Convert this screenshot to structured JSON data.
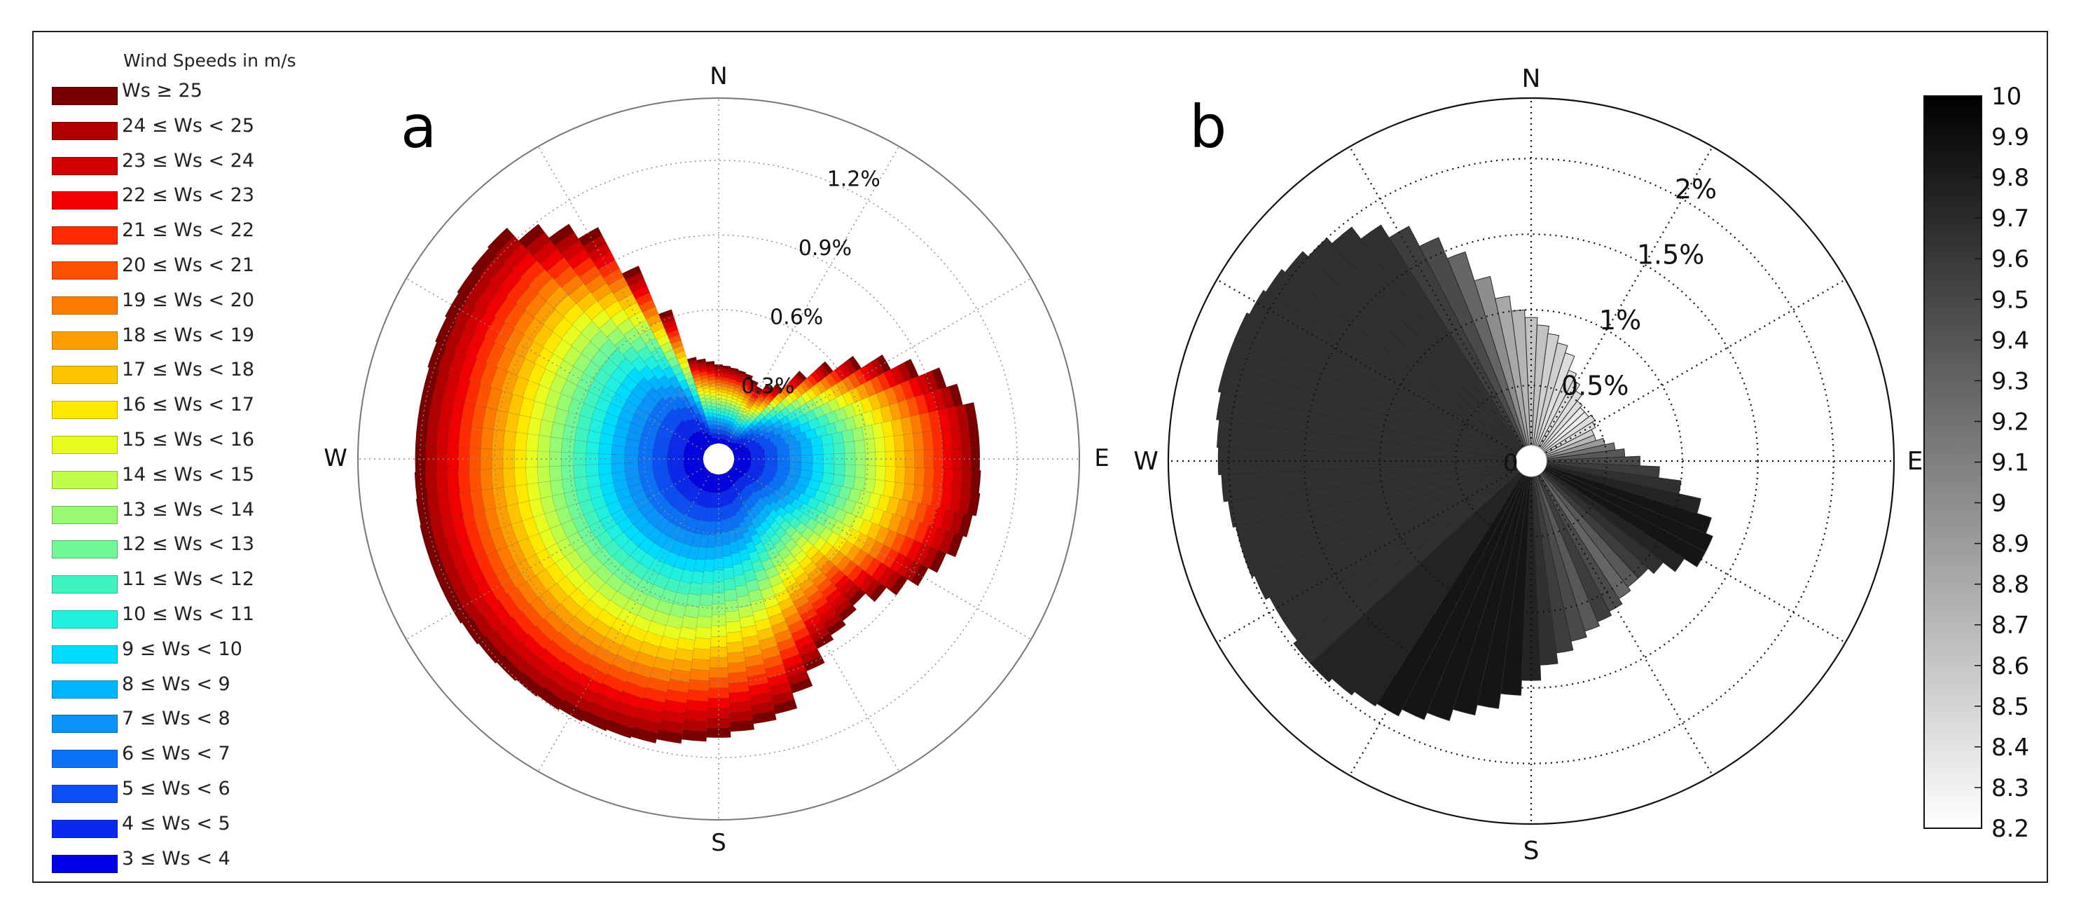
{
  "chart_data": [
    {
      "type": "polar-stacked-bar",
      "panel_label": "a",
      "title": "",
      "legend_title": "Wind Speeds in m/s",
      "directions": [
        "N",
        "E",
        "S",
        "W"
      ],
      "radial_ticks": [
        "0.3%",
        "0.6%",
        "0.9%",
        "1.2%"
      ],
      "radial_tick_values": [
        0.3,
        0.6,
        0.9,
        1.2
      ],
      "rmax": 1.45,
      "sector_count": 72,
      "outer_envelope_by_bearing": {
        "bearing_deg": [
          0,
          20,
          30,
          40,
          50,
          60,
          70,
          80,
          90,
          100,
          110,
          120,
          135,
          150,
          165,
          180,
          195,
          210,
          225,
          240,
          255,
          270,
          285,
          300,
          315,
          330,
          345,
          360
        ],
        "percent": [
          0.38,
          0.36,
          0.33,
          0.38,
          0.58,
          0.78,
          0.96,
          1.05,
          1.05,
          1.06,
          1.03,
          0.95,
          0.8,
          0.86,
          1.05,
          1.12,
          1.17,
          1.19,
          1.21,
          1.23,
          1.23,
          1.22,
          1.22,
          1.24,
          1.26,
          1.05,
          0.42,
          0.38
        ]
      },
      "speed_bins": [
        {
          "label": "3 ≤ Ws < 4",
          "color": "#0000e6"
        },
        {
          "label": "4 ≤ Ws < 5",
          "color": "#0a28ee"
        },
        {
          "label": "5 ≤ Ws < 6",
          "color": "#0a4ef4"
        },
        {
          "label": "6 ≤ Ws < 7",
          "color": "#0a72f8"
        },
        {
          "label": "7 ≤ Ws < 8",
          "color": "#0a94fa"
        },
        {
          "label": "8 ≤ Ws < 9",
          "color": "#00b4ff"
        },
        {
          "label": "9 ≤ Ws < 10",
          "color": "#00dcff"
        },
        {
          "label": "10 ≤ Ws < 11",
          "color": "#20f0e0"
        },
        {
          "label": "11 ≤ Ws < 12",
          "color": "#40f4c0"
        },
        {
          "label": "12 ≤ Ws < 13",
          "color": "#70f898"
        },
        {
          "label": "13 ≤ Ws < 14",
          "color": "#98fa70"
        },
        {
          "label": "14 ≤ Ws < 15",
          "color": "#c0fc48"
        },
        {
          "label": "15 ≤ Ws < 16",
          "color": "#e8fc20"
        },
        {
          "label": "16 ≤ Ws < 17",
          "color": "#ffe800"
        },
        {
          "label": "17 ≤ Ws < 18",
          "color": "#ffc400"
        },
        {
          "label": "18 ≤ Ws < 19",
          "color": "#ff9e00"
        },
        {
          "label": "19 ≤ Ws < 20",
          "color": "#ff7a00"
        },
        {
          "label": "20 ≤ Ws < 21",
          "color": "#ff5200"
        },
        {
          "label": "21 ≤ Ws < 22",
          "color": "#ff2a00"
        },
        {
          "label": "22 ≤ Ws < 23",
          "color": "#f00000"
        },
        {
          "label": "23 ≤ Ws < 24",
          "color": "#d20000"
        },
        {
          "label": "24 ≤ Ws < 25",
          "color": "#b00000"
        },
        {
          "label": "Ws ≥ 25",
          "color": "#7a0000"
        }
      ]
    },
    {
      "type": "polar-bar",
      "panel_label": "b",
      "title": "",
      "directions": [
        "N",
        "E",
        "S",
        "W"
      ],
      "center_label": "0",
      "radial_ticks": [
        "0.5%",
        "1%",
        "1.5%",
        "2%"
      ],
      "radial_tick_values": [
        0.5,
        1.0,
        1.5,
        2.0
      ],
      "rmax": 2.4,
      "sectors": [
        {
          "bearing": 0,
          "percent": 0.95,
          "mean_speed": 8.6
        },
        {
          "bearing": 5,
          "percent": 0.9,
          "mean_speed": 8.6
        },
        {
          "bearing": 10,
          "percent": 0.85,
          "mean_speed": 8.5
        },
        {
          "bearing": 15,
          "percent": 0.8,
          "mean_speed": 8.5
        },
        {
          "bearing": 20,
          "percent": 0.75,
          "mean_speed": 8.4
        },
        {
          "bearing": 25,
          "percent": 0.65,
          "mean_speed": 8.4
        },
        {
          "bearing": 30,
          "percent": 0.6,
          "mean_speed": 8.4
        },
        {
          "bearing": 35,
          "percent": 0.55,
          "mean_speed": 8.4
        },
        {
          "bearing": 40,
          "percent": 0.5,
          "mean_speed": 8.4
        },
        {
          "bearing": 45,
          "percent": 0.48,
          "mean_speed": 8.3
        },
        {
          "bearing": 50,
          "percent": 0.48,
          "mean_speed": 8.3
        },
        {
          "bearing": 55,
          "percent": 0.5,
          "mean_speed": 8.4
        },
        {
          "bearing": 60,
          "percent": 0.48,
          "mean_speed": 8.4
        },
        {
          "bearing": 65,
          "percent": 0.45,
          "mean_speed": 8.5
        },
        {
          "bearing": 70,
          "percent": 0.45,
          "mean_speed": 8.7
        },
        {
          "bearing": 75,
          "percent": 0.5,
          "mean_speed": 8.9
        },
        {
          "bearing": 80,
          "percent": 0.56,
          "mean_speed": 9.2
        },
        {
          "bearing": 85,
          "percent": 0.62,
          "mean_speed": 9.4
        },
        {
          "bearing": 90,
          "percent": 0.72,
          "mean_speed": 9.5
        },
        {
          "bearing": 95,
          "percent": 0.85,
          "mean_speed": 9.6
        },
        {
          "bearing": 100,
          "percent": 1.0,
          "mean_speed": 9.7
        },
        {
          "bearing": 105,
          "percent": 1.15,
          "mean_speed": 9.8
        },
        {
          "bearing": 110,
          "percent": 1.25,
          "mean_speed": 9.9
        },
        {
          "bearing": 115,
          "percent": 1.3,
          "mean_speed": 9.9
        },
        {
          "bearing": 120,
          "percent": 1.3,
          "mean_speed": 9.9
        },
        {
          "bearing": 125,
          "percent": 1.2,
          "mean_speed": 9.8
        },
        {
          "bearing": 130,
          "percent": 1.1,
          "mean_speed": 9.7
        },
        {
          "bearing": 135,
          "percent": 1.05,
          "mean_speed": 9.6
        },
        {
          "bearing": 140,
          "percent": 1.05,
          "mean_speed": 9.4
        },
        {
          "bearing": 145,
          "percent": 1.08,
          "mean_speed": 9.3
        },
        {
          "bearing": 150,
          "percent": 1.12,
          "mean_speed": 9.5
        },
        {
          "bearing": 155,
          "percent": 1.15,
          "mean_speed": 9.6
        },
        {
          "bearing": 160,
          "percent": 1.18,
          "mean_speed": 9.4
        },
        {
          "bearing": 165,
          "percent": 1.22,
          "mean_speed": 9.5
        },
        {
          "bearing": 170,
          "percent": 1.28,
          "mean_speed": 9.6
        },
        {
          "bearing": 175,
          "percent": 1.35,
          "mean_speed": 9.7
        },
        {
          "bearing": 180,
          "percent": 1.45,
          "mean_speed": 9.8
        },
        {
          "bearing": 185,
          "percent": 1.55,
          "mean_speed": 9.9
        },
        {
          "bearing": 190,
          "percent": 1.65,
          "mean_speed": 9.9
        },
        {
          "bearing": 195,
          "percent": 1.72,
          "mean_speed": 9.9
        },
        {
          "bearing": 200,
          "percent": 1.8,
          "mean_speed": 9.9
        },
        {
          "bearing": 205,
          "percent": 1.85,
          "mean_speed": 9.9
        },
        {
          "bearing": 210,
          "percent": 1.9,
          "mean_speed": 9.9
        },
        {
          "bearing": 215,
          "percent": 1.92,
          "mean_speed": 9.8
        },
        {
          "bearing": 220,
          "percent": 1.95,
          "mean_speed": 9.8
        },
        {
          "bearing": 225,
          "percent": 1.98,
          "mean_speed": 9.8
        },
        {
          "bearing": 230,
          "percent": 1.98,
          "mean_speed": 9.7
        },
        {
          "bearing": 235,
          "percent": 1.95,
          "mean_speed": 9.7
        },
        {
          "bearing": 240,
          "percent": 1.95,
          "mean_speed": 9.7
        },
        {
          "bearing": 245,
          "percent": 1.98,
          "mean_speed": 9.7
        },
        {
          "bearing": 250,
          "percent": 2.0,
          "mean_speed": 9.7
        },
        {
          "bearing": 255,
          "percent": 2.0,
          "mean_speed": 9.7
        },
        {
          "bearing": 260,
          "percent": 2.02,
          "mean_speed": 9.7
        },
        {
          "bearing": 265,
          "percent": 2.05,
          "mean_speed": 9.7
        },
        {
          "bearing": 270,
          "percent": 2.07,
          "mean_speed": 9.7
        },
        {
          "bearing": 275,
          "percent": 2.08,
          "mean_speed": 9.7
        },
        {
          "bearing": 280,
          "percent": 2.1,
          "mean_speed": 9.7
        },
        {
          "bearing": 285,
          "percent": 2.12,
          "mean_speed": 9.7
        },
        {
          "bearing": 290,
          "percent": 2.12,
          "mean_speed": 9.7
        },
        {
          "bearing": 295,
          "percent": 2.12,
          "mean_speed": 9.7
        },
        {
          "bearing": 300,
          "percent": 2.1,
          "mean_speed": 9.7
        },
        {
          "bearing": 305,
          "percent": 2.08,
          "mean_speed": 9.7
        },
        {
          "bearing": 310,
          "percent": 2.05,
          "mean_speed": 9.7
        },
        {
          "bearing": 315,
          "percent": 2.0,
          "mean_speed": 9.7
        },
        {
          "bearing": 320,
          "percent": 1.95,
          "mean_speed": 9.7
        },
        {
          "bearing": 325,
          "percent": 1.85,
          "mean_speed": 9.7
        },
        {
          "bearing": 330,
          "percent": 1.75,
          "mean_speed": 9.6
        },
        {
          "bearing": 335,
          "percent": 1.6,
          "mean_speed": 9.5
        },
        {
          "bearing": 340,
          "percent": 1.45,
          "mean_speed": 9.3
        },
        {
          "bearing": 345,
          "percent": 1.25,
          "mean_speed": 9.0
        },
        {
          "bearing": 350,
          "percent": 1.1,
          "mean_speed": 8.8
        },
        {
          "bearing": 355,
          "percent": 1.0,
          "mean_speed": 8.7
        }
      ],
      "colorbar": {
        "min": 8.2,
        "max": 10,
        "ticks": [
          "10",
          "9.9",
          "9.8",
          "9.7",
          "9.6",
          "9.5",
          "9.4",
          "9.3",
          "9.2",
          "9.1",
          "9",
          "8.9",
          "8.8",
          "8.7",
          "8.6",
          "8.5",
          "8.4",
          "8.3",
          "8.2"
        ],
        "tick_values": [
          10,
          9.9,
          9.8,
          9.7,
          9.6,
          9.5,
          9.4,
          9.3,
          9.2,
          9.1,
          9.0,
          8.9,
          8.8,
          8.7,
          8.6,
          8.5,
          8.4,
          8.3,
          8.2
        ],
        "color_low": "#ffffff",
        "color_high": "#000000"
      }
    }
  ]
}
